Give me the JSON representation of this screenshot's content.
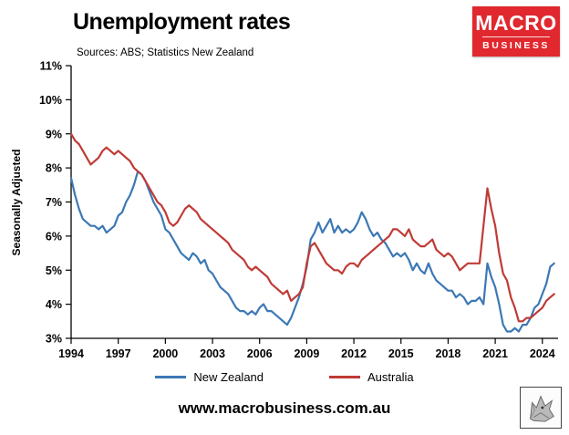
{
  "header": {
    "title": "Unemployment rates",
    "subtitle": "Sources: ABS; Statistics New Zealand",
    "logo": {
      "line1": "MACRO",
      "line2": "BUSINESS",
      "bg_color": "#e0282e"
    }
  },
  "footer": {
    "url": "www.macrobusiness.com.au",
    "wolf_icon": "wolf-logo"
  },
  "chart_data": {
    "type": "line",
    "title": "Unemployment rates",
    "xlabel": "",
    "ylabel": "Seasonally Adjusted",
    "ylim": [
      3,
      11
    ],
    "xlim": [
      1994,
      2025
    ],
    "y_ticks": [
      "3%",
      "4%",
      "5%",
      "6%",
      "7%",
      "8%",
      "9%",
      "10%",
      "11%"
    ],
    "x_ticks": [
      1994,
      1997,
      2000,
      2003,
      2006,
      2009,
      2012,
      2015,
      2018,
      2021,
      2024
    ],
    "grid": false,
    "legend_position": "bottom",
    "x_start": 1994,
    "x_step": 0.25,
    "series": [
      {
        "name": "New Zealand",
        "color": "#3c78b4",
        "values": [
          7.7,
          7.2,
          6.8,
          6.5,
          6.4,
          6.3,
          6.3,
          6.2,
          6.3,
          6.1,
          6.2,
          6.3,
          6.6,
          6.7,
          7.0,
          7.2,
          7.5,
          7.9,
          7.8,
          7.6,
          7.3,
          7.0,
          6.8,
          6.6,
          6.2,
          6.1,
          5.9,
          5.7,
          5.5,
          5.4,
          5.3,
          5.5,
          5.4,
          5.2,
          5.3,
          5.0,
          4.9,
          4.7,
          4.5,
          4.4,
          4.3,
          4.1,
          3.9,
          3.8,
          3.8,
          3.7,
          3.8,
          3.7,
          3.9,
          4.0,
          3.8,
          3.8,
          3.7,
          3.6,
          3.5,
          3.4,
          3.6,
          3.9,
          4.2,
          4.6,
          5.1,
          5.9,
          6.1,
          6.4,
          6.1,
          6.3,
          6.5,
          6.1,
          6.3,
          6.1,
          6.2,
          6.1,
          6.2,
          6.4,
          6.7,
          6.5,
          6.2,
          6.0,
          6.1,
          5.9,
          5.8,
          5.6,
          5.4,
          5.5,
          5.4,
          5.5,
          5.3,
          5.0,
          5.2,
          5.0,
          4.9,
          5.2,
          4.9,
          4.7,
          4.6,
          4.5,
          4.4,
          4.4,
          4.2,
          4.3,
          4.2,
          4.0,
          4.1,
          4.1,
          4.2,
          4.0,
          5.2,
          4.8,
          4.5,
          4.0,
          3.4,
          3.2,
          3.2,
          3.3,
          3.2,
          3.4,
          3.4,
          3.6,
          3.9,
          4.0,
          4.3,
          4.6,
          5.1,
          5.2
        ]
      },
      {
        "name": "Australia",
        "color": "#bf3b36",
        "values": [
          9.0,
          8.8,
          8.7,
          8.5,
          8.3,
          8.1,
          8.2,
          8.3,
          8.5,
          8.6,
          8.5,
          8.4,
          8.5,
          8.4,
          8.3,
          8.2,
          8.0,
          7.9,
          7.8,
          7.6,
          7.4,
          7.2,
          7.0,
          6.9,
          6.7,
          6.4,
          6.3,
          6.4,
          6.6,
          6.8,
          6.9,
          6.8,
          6.7,
          6.5,
          6.4,
          6.3,
          6.2,
          6.1,
          6.0,
          5.9,
          5.8,
          5.6,
          5.5,
          5.4,
          5.3,
          5.1,
          5.0,
          5.1,
          5.0,
          4.9,
          4.8,
          4.6,
          4.5,
          4.4,
          4.3,
          4.4,
          4.1,
          4.2,
          4.3,
          4.5,
          5.2,
          5.7,
          5.8,
          5.6,
          5.4,
          5.2,
          5.1,
          5.0,
          5.0,
          4.9,
          5.1,
          5.2,
          5.2,
          5.1,
          5.3,
          5.4,
          5.5,
          5.6,
          5.7,
          5.8,
          5.9,
          6.0,
          6.2,
          6.2,
          6.1,
          6.0,
          6.2,
          5.9,
          5.8,
          5.7,
          5.7,
          5.8,
          5.9,
          5.6,
          5.5,
          5.4,
          5.5,
          5.4,
          5.2,
          5.0,
          5.1,
          5.2,
          5.2,
          5.2,
          5.2,
          6.3,
          7.4,
          6.8,
          6.3,
          5.5,
          4.9,
          4.7,
          4.2,
          3.9,
          3.5,
          3.5,
          3.6,
          3.6,
          3.7,
          3.8,
          3.9,
          4.1,
          4.2,
          4.3
        ]
      }
    ]
  }
}
